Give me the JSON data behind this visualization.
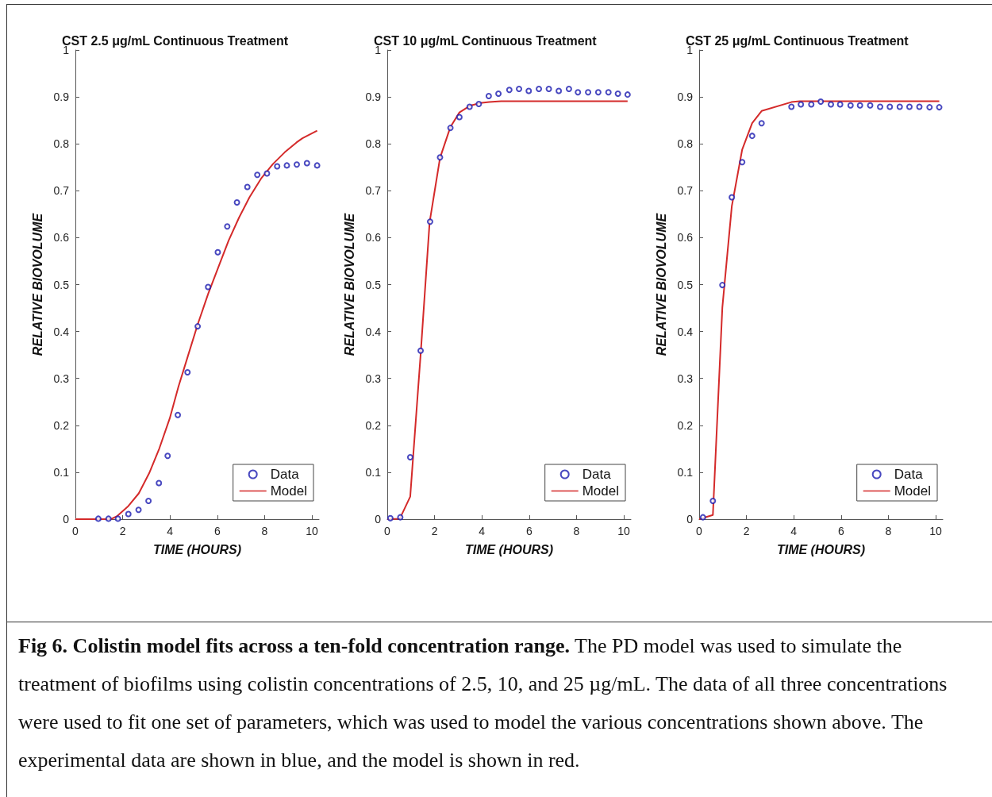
{
  "chart_data": [
    {
      "type": "line",
      "title": "CST 2.5 μg/mL Continuous Treatment",
      "xlabel": "TIME (HOURS)",
      "ylabel": "RELATIVE BIOVOLUME",
      "xlim": [
        0,
        10.3
      ],
      "xticks": [
        0,
        2,
        4,
        6,
        8,
        10
      ],
      "ylim": [
        0,
        1
      ],
      "yticks": [
        0,
        0.1,
        0.2,
        0.3,
        0.4,
        0.5,
        0.6,
        0.7,
        0.8,
        0.9,
        1
      ],
      "grid": false,
      "legend": "bottom right",
      "annotations": [
        "Fig 6. Colistin model fits across a ten-fold concentration range.",
        "The PD model was used to simulate the treatment of biofilms using colistin concentrations of 2.5, 10, and 25 µg/mL. The data of all three concentrations were used to fit one set of parameters, which was used to model the various concentrations shown above. The experimental data are shown in blue, and the model is shown in red."
      ],
      "series": [
        {
          "name": "Data",
          "type": "scatter",
          "marker": "circle",
          "color": "#1c1cb0",
          "x": [
            0.97,
            1.4,
            1.8,
            2.24,
            2.67,
            3.09,
            3.53,
            3.9,
            4.33,
            4.74,
            5.17,
            5.61,
            6.02,
            6.42,
            6.83,
            7.27,
            7.69,
            8.1,
            8.53,
            8.94,
            9.36,
            9.79,
            10.22
          ],
          "values": [
            0.001,
            0.001,
            0.001,
            0.011,
            0.02,
            0.039,
            0.077,
            0.135,
            0.222,
            0.313,
            0.411,
            0.495,
            0.569,
            0.624,
            0.675,
            0.708,
            0.734,
            0.737,
            0.752,
            0.754,
            0.756,
            0.759,
            0.754
          ]
        },
        {
          "name": "Model",
          "marker": "none",
          "color": "#d42a2a",
          "x": [
            0,
            1.5,
            1.75,
            2.24,
            2.68,
            3.12,
            3.55,
            3.99,
            4.36,
            4.74,
            5.17,
            5.61,
            6.05,
            6.48,
            6.92,
            7.36,
            7.85,
            8.35,
            8.85,
            9.35,
            9.6,
            10.22
          ],
          "values": [
            0,
            0,
            0.006,
            0.028,
            0.055,
            0.098,
            0.151,
            0.215,
            0.283,
            0.345,
            0.415,
            0.48,
            0.538,
            0.594,
            0.643,
            0.686,
            0.726,
            0.757,
            0.782,
            0.803,
            0.812,
            0.828
          ]
        }
      ]
    },
    {
      "type": "line",
      "title": "CST 10 μg/mL Continuous Treatment",
      "xlabel": "TIME (HOURS)",
      "ylabel": "RELATIVE BIOVOLUME",
      "xlim": [
        0,
        10.3
      ],
      "xticks": [
        0,
        2,
        4,
        6,
        8,
        10
      ],
      "ylim": [
        0,
        1
      ],
      "yticks": [
        0,
        0.1,
        0.2,
        0.3,
        0.4,
        0.5,
        0.6,
        0.7,
        0.8,
        0.9,
        1
      ],
      "grid": false,
      "legend": "bottom right",
      "series": [
        {
          "name": "Data",
          "type": "scatter",
          "marker": "circle",
          "color": "#1c1cb0",
          "x": [
            0.13,
            0.55,
            0.97,
            1.41,
            1.81,
            2.23,
            2.67,
            3.05,
            3.48,
            3.87,
            4.29,
            4.7,
            5.16,
            5.57,
            5.98,
            6.41,
            6.83,
            7.25,
            7.68,
            8.06,
            8.49,
            8.92,
            9.35,
            9.75,
            10.16
          ],
          "values": [
            0.002,
            0.004,
            0.132,
            0.359,
            0.634,
            0.771,
            0.834,
            0.857,
            0.879,
            0.885,
            0.902,
            0.907,
            0.915,
            0.917,
            0.913,
            0.917,
            0.917,
            0.913,
            0.917,
            0.91,
            0.91,
            0.91,
            0.91,
            0.907,
            0.905
          ]
        },
        {
          "name": "Model",
          "marker": "none",
          "color": "#d42a2a",
          "x": [
            0,
            0.53,
            0.97,
            1.41,
            1.79,
            2.23,
            2.67,
            3.05,
            3.49,
            3.93,
            4.31,
            4.81,
            10.16
          ],
          "values": [
            0,
            0.001,
            0.048,
            0.351,
            0.633,
            0.77,
            0.836,
            0.867,
            0.881,
            0.887,
            0.889,
            0.891,
            0.891
          ]
        }
      ]
    },
    {
      "type": "line",
      "title": "CST 25 μg/mL Continuous Treatment",
      "xlabel": "TIME (HOURS)",
      "ylabel": "RELATIVE BIOVOLUME",
      "xlim": [
        0,
        10.3
      ],
      "xticks": [
        0,
        2,
        4,
        6,
        8,
        10
      ],
      "ylim": [
        0,
        1
      ],
      "yticks": [
        0,
        0.1,
        0.2,
        0.3,
        0.4,
        0.5,
        0.6,
        0.7,
        0.8,
        0.9,
        1
      ],
      "grid": false,
      "legend": "bottom right",
      "series": [
        {
          "name": "Data",
          "type": "scatter",
          "marker": "circle",
          "color": "#1c1cb0",
          "x": [
            0.16,
            0.58,
            0.98,
            1.38,
            1.82,
            2.24,
            2.64,
            3.9,
            4.3,
            4.74,
            5.14,
            5.57,
            5.96,
            6.4,
            6.8,
            7.23,
            7.65,
            8.06,
            8.48,
            8.89,
            9.31,
            9.74,
            10.15
          ],
          "values": [
            0.004,
            0.039,
            0.499,
            0.686,
            0.761,
            0.817,
            0.844,
            0.879,
            0.884,
            0.884,
            0.89,
            0.884,
            0.884,
            0.882,
            0.882,
            0.882,
            0.879,
            0.879,
            0.879,
            0.879,
            0.879,
            0.878,
            0.878
          ]
        },
        {
          "name": "Model",
          "marker": "none",
          "color": "#d42a2a",
          "x": [
            0,
            0.58,
            0.98,
            1.38,
            1.82,
            2.24,
            2.64,
            3.9,
            4.25,
            10.15
          ],
          "values": [
            0,
            0.009,
            0.451,
            0.667,
            0.788,
            0.844,
            0.87,
            0.889,
            0.891,
            0.891
          ]
        }
      ]
    }
  ]
}
